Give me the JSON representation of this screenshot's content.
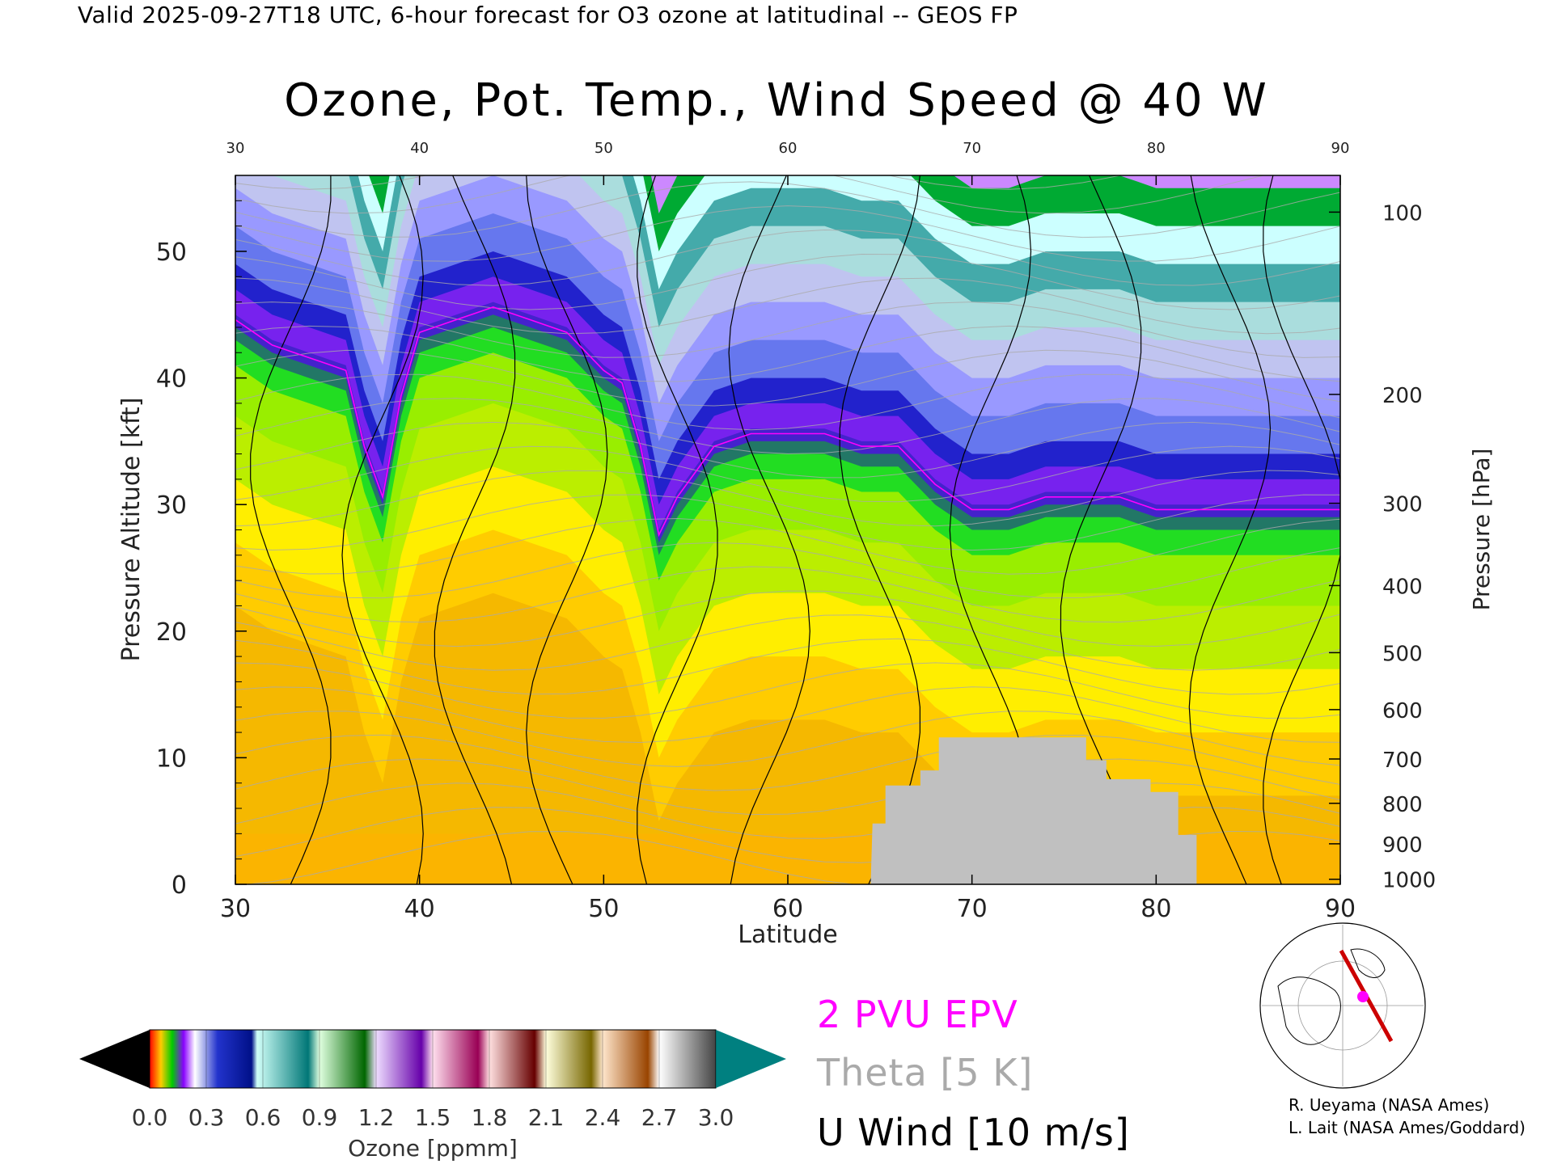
{
  "header": "Valid 2025-09-27T18 UTC, 6-hour forecast for O3 ozone at latitudinal -- GEOS FP",
  "chart_data": {
    "type": "heatmap",
    "title": "Ozone, Pot. Temp., Wind Speed @ 40 W",
    "xlabel": "Latitude",
    "ylabel": "Pressure Altitude [kft]",
    "y2label": "Pressure [hPa]",
    "xlim": [
      30,
      90
    ],
    "ylim": [
      0,
      56
    ],
    "x_ticks": [
      30,
      40,
      50,
      60,
      70,
      80,
      90
    ],
    "y_ticks": [
      0,
      10,
      20,
      30,
      40,
      50
    ],
    "pressure_ticks": [
      {
        "hpa": 100,
        "kft": 53.1
      },
      {
        "hpa": 200,
        "kft": 38.7
      },
      {
        "hpa": 300,
        "kft": 30.1
      },
      {
        "hpa": 400,
        "kft": 23.6
      },
      {
        "hpa": 500,
        "kft": 18.3
      },
      {
        "hpa": 600,
        "kft": 13.8
      },
      {
        "hpa": 700,
        "kft": 9.9
      },
      {
        "hpa": 800,
        "kft": 6.4
      },
      {
        "hpa": 900,
        "kft": 3.2
      },
      {
        "hpa": 1000,
        "kft": 0.4
      }
    ],
    "tropopause_kft": [
      [
        30,
        44
      ],
      [
        32,
        42
      ],
      [
        34,
        41
      ],
      [
        36,
        40
      ],
      [
        37,
        34
      ],
      [
        38,
        30
      ],
      [
        39,
        38
      ],
      [
        40,
        43
      ],
      [
        42,
        44
      ],
      [
        44,
        45
      ],
      [
        46,
        44
      ],
      [
        48,
        43
      ],
      [
        50,
        40
      ],
      [
        51,
        39
      ],
      [
        52,
        34
      ],
      [
        53,
        27
      ],
      [
        54,
        30
      ],
      [
        56,
        34
      ],
      [
        58,
        35
      ],
      [
        60,
        35
      ],
      [
        62,
        35
      ],
      [
        64,
        34
      ],
      [
        66,
        34
      ],
      [
        68,
        31
      ],
      [
        70,
        29
      ],
      [
        72,
        29
      ],
      [
        74,
        30
      ],
      [
        76,
        30
      ],
      [
        78,
        30
      ],
      [
        80,
        29
      ],
      [
        82,
        29
      ],
      [
        84,
        29
      ],
      [
        86,
        29
      ],
      [
        88,
        29
      ],
      [
        90,
        29
      ]
    ],
    "surface_kft": [
      [
        64.5,
        0
      ],
      [
        64.6,
        4.8
      ],
      [
        65.3,
        4.8
      ],
      [
        65.3,
        7.8
      ],
      [
        67.2,
        7.8
      ],
      [
        67.2,
        9.0
      ],
      [
        68.2,
        9.0
      ],
      [
        68.2,
        11.6
      ],
      [
        76.2,
        11.6
      ],
      [
        76.2,
        9.8
      ],
      [
        77.3,
        9.8
      ],
      [
        77.3,
        8.3
      ],
      [
        79.7,
        8.3
      ],
      [
        79.7,
        7.3
      ],
      [
        81.2,
        7.3
      ],
      [
        81.2,
        3.9
      ],
      [
        82.2,
        3.9
      ],
      [
        82.2,
        0
      ]
    ],
    "ozone_colorbar": {
      "label": "Ozone [ppmm]",
      "ticks": [
        "0.0",
        "0.3",
        "0.6",
        "0.9",
        "1.2",
        "1.5",
        "1.8",
        "2.1",
        "2.4",
        "2.7",
        "3.0"
      ]
    },
    "legend": {
      "epv": "2 PVU EPV",
      "theta": "Theta [5 K]",
      "wind": "U Wind [10 m/s]"
    }
  },
  "credits": [
    "R. Ueyama (NASA Ames)",
    "L. Lait (NASA Ames/Goddard)"
  ],
  "colors": {
    "epv": "#ff00ff",
    "theta": "#aaaaaa",
    "surface": "#c0c0c0",
    "route": "#cc0000"
  }
}
